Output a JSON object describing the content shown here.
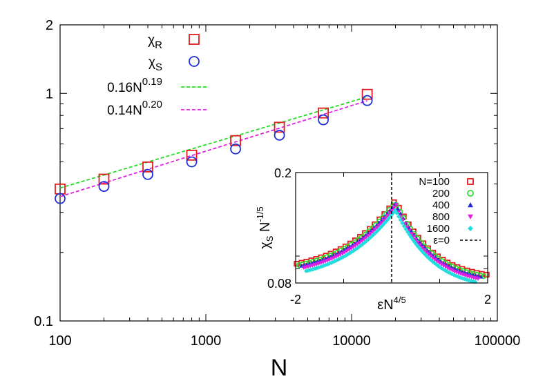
{
  "chart_data": [
    {
      "type": "scatter",
      "title": "",
      "xlabel": "N",
      "ylabel": "",
      "xscale": "log",
      "yscale": "log",
      "xlim": [
        100,
        100000
      ],
      "ylim": [
        0.1,
        2
      ],
      "x_tick_labels": [
        "100",
        "1000",
        "10000",
        "100000"
      ],
      "y_tick_labels": [
        "0.1",
        "1",
        "2"
      ],
      "grid": false,
      "legend_position": "top-left",
      "series": [
        {
          "name_main": "χ",
          "name_sub": "R",
          "marker": "square",
          "color": "#e41a1c",
          "x": [
            100,
            200,
            400,
            800,
            1600,
            3200,
            6400,
            12800
          ],
          "y": [
            0.38,
            0.42,
            0.475,
            0.535,
            0.62,
            0.71,
            0.82,
            0.99
          ]
        },
        {
          "name_main": "χ",
          "name_sub": "S",
          "marker": "circle",
          "color": "#1f2fd6",
          "x": [
            100,
            200,
            400,
            800,
            1600,
            3200,
            6400,
            12800
          ],
          "y": [
            0.345,
            0.39,
            0.44,
            0.5,
            0.57,
            0.655,
            0.765,
            0.93
          ]
        },
        {
          "name_main": "0.16N",
          "name_sup": "0.19",
          "type": "line",
          "style": "dashed",
          "color": "#22dd22",
          "coef": 0.16,
          "exponent": 0.19,
          "x_range": [
            100,
            12800
          ]
        },
        {
          "name_main": "0.14N",
          "name_sup": "0.20",
          "type": "line",
          "style": "dashed",
          "color": "#e020e0",
          "coef": 0.14,
          "exponent": 0.2,
          "x_range": [
            100,
            12800
          ]
        }
      ]
    },
    {
      "type": "scatter",
      "title": "",
      "xlabel_main": "εN",
      "xlabel_sup": "4/5",
      "ylabel_main": "χ",
      "ylabel_sub": "S",
      "ylabel_rest": " N",
      "ylabel_sup": "-1/5",
      "yscale": "log",
      "xlim": [
        -2,
        2
      ],
      "ylim": [
        0.08,
        0.2
      ],
      "x_tick_labels": [
        "-2",
        "2"
      ],
      "y_tick_labels": [
        "0.08",
        "0.2"
      ],
      "grid": false,
      "legend_position": "top-right",
      "series": [
        {
          "name": "N=100",
          "marker": "square-open",
          "color": "#e41a1c",
          "scale": 1.0,
          "offset": 0.0
        },
        {
          "name": "200",
          "marker": "circle-open",
          "color": "#33dd33",
          "scale": 0.985,
          "offset": 0.0
        },
        {
          "name": "400",
          "marker": "triangle-up",
          "color": "#1f2fd6",
          "scale": 0.975,
          "offset": 0.0
        },
        {
          "name": "800",
          "marker": "triangle-down",
          "color": "#e020e0",
          "scale": 0.955,
          "offset": 0.0
        },
        {
          "name": "1600",
          "marker": "diamond",
          "color": "#22dddd",
          "scale": 0.925,
          "offset": 0.0
        },
        {
          "name": "ε=0",
          "type": "vline",
          "style": "dashed",
          "color": "#000000",
          "x": 0
        }
      ]
    }
  ]
}
